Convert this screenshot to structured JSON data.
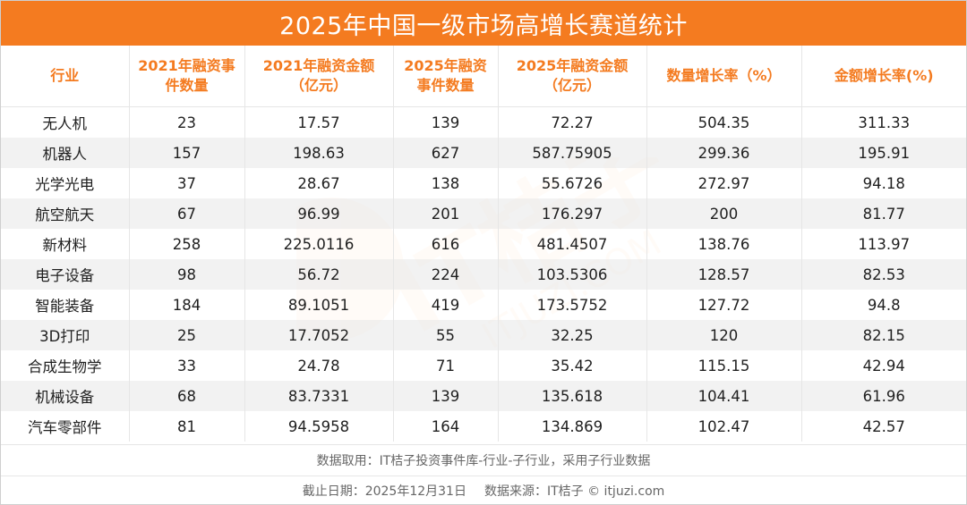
{
  "title": "2025年中国一级市场高增长赛道统计",
  "watermark": {
    "brand": "IT桔子",
    "url": "ITJUZI.COM"
  },
  "chart_data": {
    "type": "table",
    "title": "2025年中国一级市场高增长赛道统计",
    "columns": [
      "行业",
      "2021年融资事件数量",
      "2021年融资金额（亿元）",
      "2025年融资事件数量",
      "2025年融资金额（亿元）",
      "数量增长率（%）",
      "金额增长率(%)"
    ],
    "header_lines": [
      [
        "行业"
      ],
      [
        "2021年融资事",
        "件数量"
      ],
      [
        "2021年融资金额",
        "（亿元）"
      ],
      [
        "2025年融资",
        "事件数量"
      ],
      [
        "2025年融资金额",
        "（亿元）"
      ],
      [
        "数量增长率（%）"
      ],
      [
        "金额增长率(%)"
      ]
    ],
    "rows": [
      [
        "无人机",
        "23",
        "17.57",
        "139",
        "72.27",
        "504.35",
        "311.33"
      ],
      [
        "机器人",
        "157",
        "198.63",
        "627",
        "587.75905",
        "299.36",
        "195.91"
      ],
      [
        "光学光电",
        "37",
        "28.67",
        "138",
        "55.6726",
        "272.97",
        "94.18"
      ],
      [
        "航空航天",
        "67",
        "96.99",
        "201",
        "176.297",
        "200",
        "81.77"
      ],
      [
        "新材料",
        "258",
        "225.0116",
        "616",
        "481.4507",
        "138.76",
        "113.97"
      ],
      [
        "电子设备",
        "98",
        "56.72",
        "224",
        "103.5306",
        "128.57",
        "82.53"
      ],
      [
        "智能装备",
        "184",
        "89.1051",
        "419",
        "173.5752",
        "127.72",
        "94.8"
      ],
      [
        "3D打印",
        "25",
        "17.7052",
        "55",
        "32.25",
        "120",
        "82.15"
      ],
      [
        "合成生物学",
        "33",
        "24.78",
        "71",
        "35.42",
        "115.15",
        "42.94"
      ],
      [
        "机械设备",
        "68",
        "83.7331",
        "139",
        "135.618",
        "104.41",
        "61.96"
      ],
      [
        "汽车零部件",
        "81",
        "94.5958",
        "164",
        "134.869",
        "102.47",
        "42.57"
      ]
    ]
  },
  "footer": {
    "note": "数据取用：IT桔子投资事件库-行业-子行业，采用子行业数据",
    "date": "截止日期：2025年12月31日",
    "source": "数据来源：IT桔子 © itjuzi.com"
  },
  "colors": {
    "accent": "#f47b20",
    "stripe": "#eeeeee",
    "text": "#1f1f1f",
    "muted": "#666666"
  }
}
